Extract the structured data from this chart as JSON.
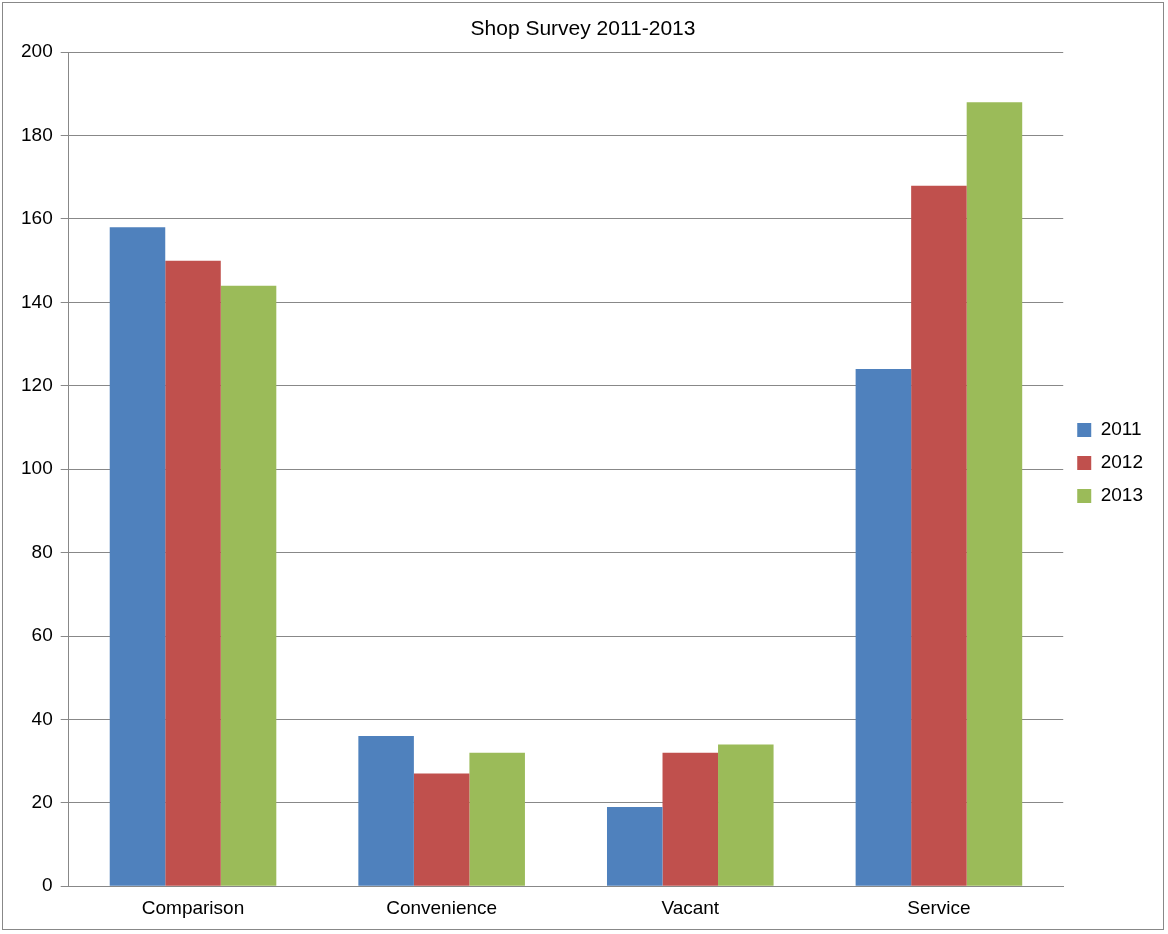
{
  "chart_data": {
    "type": "bar",
    "title": "Shop Survey 2011-2013",
    "categories": [
      "Comparison",
      "Convenience",
      "Vacant",
      "Service"
    ],
    "series": [
      {
        "name": "2011",
        "color": "#4f81bd",
        "values": [
          158,
          36,
          19,
          124
        ]
      },
      {
        "name": "2012",
        "color": "#c0504d",
        "values": [
          150,
          27,
          32,
          168
        ]
      },
      {
        "name": "2013",
        "color": "#9bbb59",
        "values": [
          144,
          32,
          34,
          188
        ]
      }
    ],
    "ylim": [
      0,
      200
    ],
    "yticks": [
      0,
      20,
      40,
      60,
      80,
      100,
      120,
      140,
      160,
      180,
      200
    ],
    "grid": "y",
    "legend": "right"
  }
}
